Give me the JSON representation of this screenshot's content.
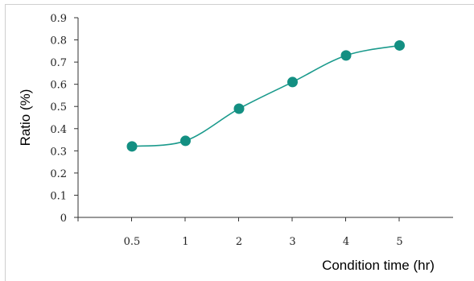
{
  "chart_data": {
    "type": "line",
    "categories": [
      "0.5",
      "1",
      "2",
      "3",
      "4",
      "5"
    ],
    "series": [
      {
        "values": [
          0.32,
          0.345,
          0.49,
          0.61,
          0.73,
          0.775
        ]
      }
    ],
    "ylabel": "Ratio (%)",
    "xlabel": "Condition time (hr)",
    "ylim": [
      0,
      0.9
    ],
    "yticks": [
      "0",
      "0.1",
      "0.2",
      "0.3",
      "0.4",
      "0.5",
      "0.6",
      "0.7",
      "0.8",
      "0.9"
    ],
    "grid": false,
    "smooth": true,
    "colors": {
      "line": "#1a9a8c",
      "marker": "#138f82",
      "axis": "#333333"
    }
  }
}
